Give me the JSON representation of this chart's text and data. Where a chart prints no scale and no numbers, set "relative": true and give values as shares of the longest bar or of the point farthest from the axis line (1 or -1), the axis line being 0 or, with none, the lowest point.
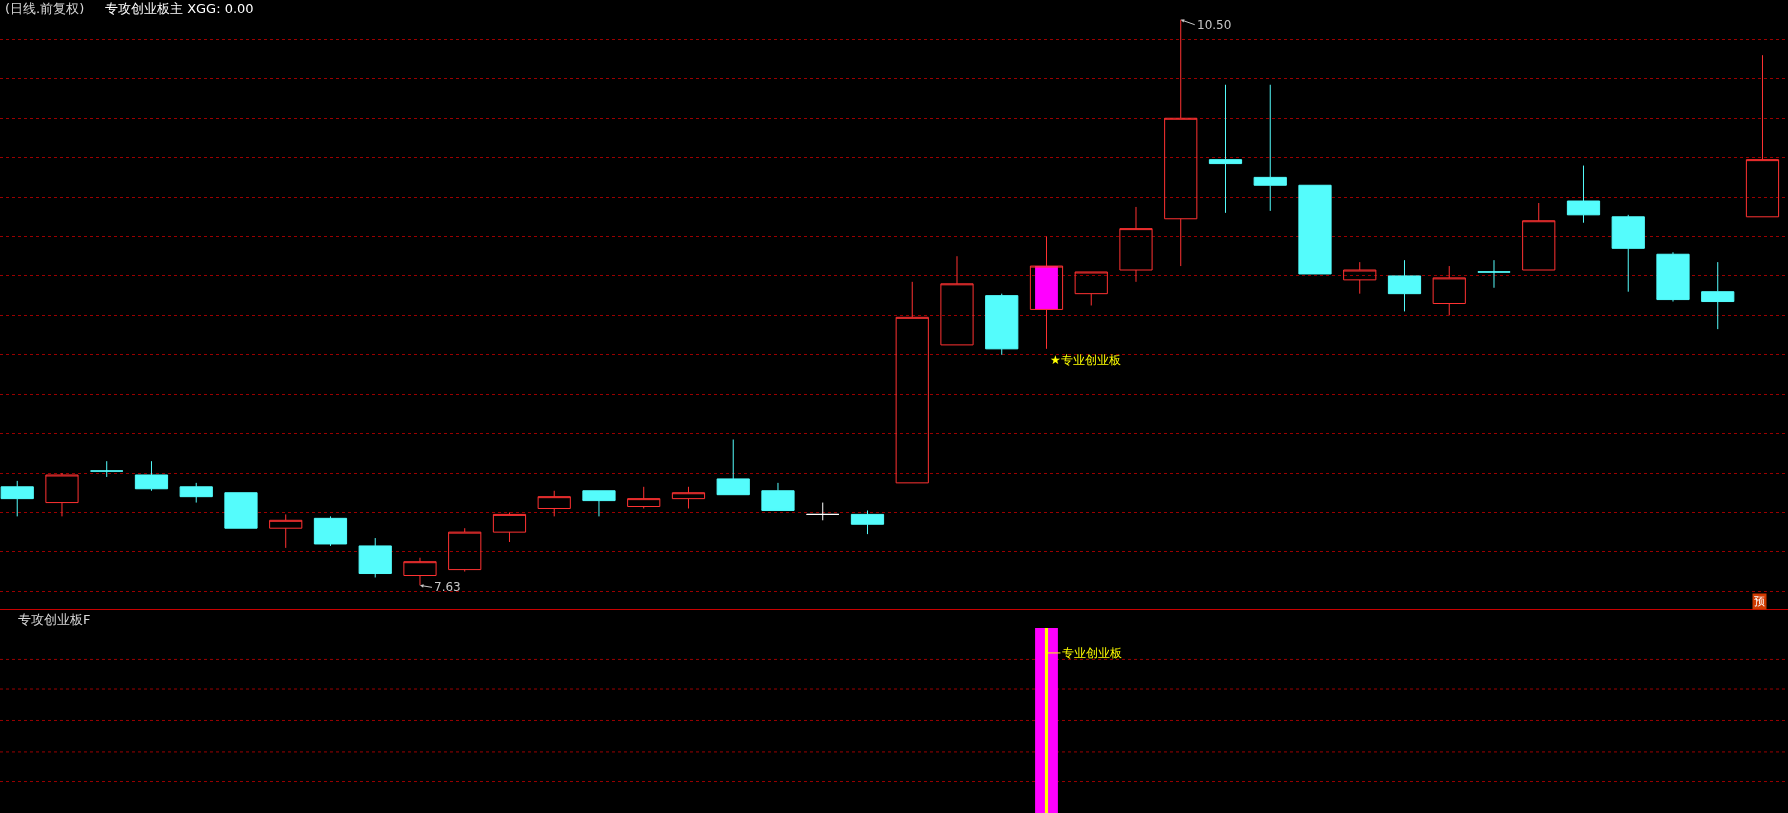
{
  "chart_data": [
    {
      "type": "candlestick",
      "title": "(日线.前复权)",
      "subtitle": "专攻创业板主 XGG: 0.00",
      "categories": [
        null,
        null,
        null,
        null,
        null,
        null,
        null,
        null,
        null,
        null,
        null,
        null,
        null,
        null,
        null,
        null,
        null,
        null,
        null,
        null,
        null,
        null,
        null,
        null,
        null,
        null,
        null,
        null,
        null,
        null,
        null,
        null,
        null,
        null,
        null,
        null,
        null,
        null,
        null,
        null
      ],
      "ohlc": [
        [
          8.13,
          8.16,
          7.98,
          8.07
        ],
        [
          8.05,
          8.2,
          7.98,
          8.19
        ],
        [
          8.21,
          8.26,
          8.18,
          8.21
        ],
        [
          8.19,
          8.26,
          8.11,
          8.12
        ],
        [
          8.13,
          8.15,
          8.05,
          8.08
        ],
        [
          8.1,
          8.1,
          7.92,
          7.92
        ],
        [
          7.92,
          7.99,
          7.82,
          7.96
        ],
        [
          7.97,
          7.98,
          7.83,
          7.84
        ],
        [
          7.83,
          7.87,
          7.67,
          7.69
        ],
        [
          7.68,
          7.77,
          7.63,
          7.75
        ],
        [
          7.71,
          7.92,
          7.7,
          7.9
        ],
        [
          7.9,
          8.0,
          7.85,
          7.99
        ],
        [
          8.02,
          8.11,
          7.98,
          8.08
        ],
        [
          8.11,
          8.11,
          7.98,
          8.06
        ],
        [
          8.03,
          8.13,
          8.02,
          8.07
        ],
        [
          8.07,
          8.13,
          8.02,
          8.1
        ],
        [
          8.17,
          8.37,
          8.09,
          8.09
        ],
        [
          8.11,
          8.15,
          8.01,
          8.01
        ],
        [
          7.99,
          8.05,
          7.96,
          7.99
        ],
        [
          7.99,
          8.01,
          7.89,
          7.94
        ],
        [
          8.15,
          9.17,
          8.15,
          8.99
        ],
        [
          8.85,
          9.3,
          8.85,
          9.16
        ],
        [
          9.1,
          9.11,
          8.8,
          8.83
        ],
        [
          9.03,
          9.4,
          8.83,
          9.25
        ],
        [
          9.11,
          9.22,
          9.05,
          9.22
        ],
        [
          9.23,
          9.55,
          9.17,
          9.44
        ],
        [
          9.49,
          10.5,
          9.25,
          10.0
        ],
        [
          9.79,
          10.17,
          9.52,
          9.77
        ],
        [
          9.7,
          10.17,
          9.53,
          9.66
        ],
        [
          9.66,
          9.66,
          9.21,
          9.21
        ],
        [
          9.18,
          9.27,
          9.11,
          9.23
        ],
        [
          9.2,
          9.28,
          9.02,
          9.11
        ],
        [
          9.06,
          9.25,
          9.0,
          9.19
        ],
        [
          9.22,
          9.28,
          9.14,
          9.22
        ],
        [
          9.23,
          9.57,
          9.23,
          9.48
        ],
        [
          9.58,
          9.76,
          9.47,
          9.51
        ],
        [
          9.5,
          9.51,
          9.12,
          9.34
        ],
        [
          9.31,
          9.32,
          9.07,
          9.08
        ],
        [
          9.12,
          9.27,
          8.93,
          9.07
        ],
        [
          9.5,
          10.32,
          9.5,
          9.79
        ]
      ],
      "colors": [
        "#54fcfc",
        "#ff3232",
        "#54fcfc",
        "#54fcfc",
        "#54fcfc",
        "#54fcfc",
        "#ff3232",
        "#54fcfc",
        "#54fcfc",
        "#ff3232",
        "#ff3232",
        "#ff3232",
        "#ff3232",
        "#54fcfc",
        "#ff3232",
        "#ff3232",
        "#54fcfc",
        "#54fcfc",
        "#ffffff",
        "#54fcfc",
        "#ff3232",
        "#ff3232",
        "#54fcfc",
        "#ff3232",
        "#ff3232",
        "#ff3232",
        "#ff3232",
        "#54fcfc",
        "#54fcfc",
        "#54fcfc",
        "#ff3232",
        "#54fcfc",
        "#ff3232",
        "#54fcfc",
        "#ff3232",
        "#54fcfc",
        "#54fcfc",
        "#54fcfc",
        "#54fcfc",
        "#ff3232"
      ],
      "series": [
        {
          "type": "bar",
          "color": "#ff00ff",
          "base": [
            null,
            null,
            null,
            null,
            null,
            null,
            null,
            null,
            null,
            null,
            null,
            null,
            null,
            null,
            null,
            null,
            null,
            null,
            null,
            null,
            null,
            null,
            null,
            9.03,
            null,
            null,
            null,
            null,
            null,
            null,
            null,
            null,
            null,
            null,
            null,
            null,
            null,
            null,
            null,
            null
          ],
          "values": [
            null,
            null,
            null,
            null,
            null,
            null,
            null,
            null,
            null,
            null,
            null,
            null,
            null,
            null,
            null,
            null,
            null,
            null,
            null,
            null,
            null,
            null,
            null,
            0.22,
            null,
            null,
            null,
            null,
            null,
            null,
            null,
            null,
            null,
            null,
            null,
            null,
            null,
            null,
            null,
            null
          ]
        }
      ],
      "ylim": [
        7.51,
        10.6
      ],
      "yticks": [
        {
          "value": 7.6,
          "label": null
        },
        {
          "value": 7.8,
          "label": null
        },
        {
          "value": 8.0,
          "label": null
        },
        {
          "value": 8.2,
          "label": null
        },
        {
          "value": 8.4,
          "label": null
        },
        {
          "value": 8.6,
          "label": null
        },
        {
          "value": 8.8,
          "label": null
        },
        {
          "value": 9.0,
          "label": null
        },
        {
          "value": 9.2,
          "label": null
        },
        {
          "value": 9.4,
          "label": null
        },
        {
          "value": 9.6,
          "label": null
        },
        {
          "value": 9.8,
          "label": null
        },
        {
          "value": 10.0,
          "label": null
        },
        {
          "value": 10.2,
          "label": null
        },
        {
          "value": 10.4,
          "label": null
        }
      ],
      "grid": "y",
      "annotations": [
        "10.50",
        "7.63",
        "★专业创业板",
        "预"
      ]
    },
    {
      "type": "bar",
      "title": "专攻创业板F",
      "categories": [
        null,
        null,
        null,
        null,
        null,
        null,
        null,
        null,
        null,
        null,
        null,
        null,
        null,
        null,
        null,
        null,
        null,
        null,
        null,
        null,
        null,
        null,
        null,
        null,
        null,
        null,
        null,
        null,
        null,
        null,
        null,
        null,
        null,
        null,
        null,
        null,
        null,
        null,
        null,
        null
      ],
      "relative": true,
      "series": [
        {
          "color": "#ff00ff",
          "values": [
            null,
            null,
            null,
            null,
            null,
            null,
            null,
            null,
            null,
            null,
            null,
            null,
            null,
            null,
            null,
            null,
            null,
            null,
            null,
            null,
            null,
            null,
            null,
            1,
            null,
            null,
            null,
            null,
            null,
            null,
            null,
            null,
            null,
            null,
            null,
            null,
            null,
            null,
            null,
            null
          ]
        },
        {
          "color": "#ffff00",
          "values": [
            null,
            null,
            null,
            null,
            null,
            null,
            null,
            null,
            null,
            null,
            null,
            null,
            null,
            null,
            null,
            null,
            null,
            null,
            null,
            null,
            null,
            null,
            null,
            1,
            null,
            null,
            null,
            null,
            null,
            null,
            null,
            null,
            null,
            null,
            null,
            null,
            null,
            null,
            null,
            null
          ]
        }
      ],
      "ref_lines": [
        {
          "axis": "y",
          "value": 0.17,
          "color": "#9a0000",
          "line_style": "dotted"
        },
        {
          "axis": "y",
          "value": 0.33,
          "color": "#9a0000",
          "line_style": "dotted"
        },
        {
          "axis": "y",
          "value": 0.5,
          "color": "#9a0000",
          "line_style": "dotted"
        },
        {
          "axis": "y",
          "value": 0.67,
          "color": "#9a0000",
          "line_style": "dotted"
        },
        {
          "axis": "y",
          "value": 0.83,
          "color": "#9a0000",
          "line_style": "dotted"
        }
      ],
      "annotations": [
        "专业创业板"
      ]
    }
  ]
}
